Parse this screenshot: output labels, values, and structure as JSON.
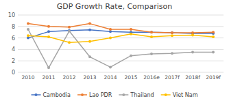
{
  "chart_data": {
    "type": "line",
    "title": "GDP Growth Rate, Comparison",
    "categories": [
      "2010",
      "2011",
      "2012",
      "2013",
      "2014",
      "2015",
      "2016e",
      "2017f",
      "2018f",
      "2019f"
    ],
    "series": [
      {
        "name": "Cambodia",
        "color": "#4472C4",
        "marker": "circle",
        "values": [
          6.0,
          7.1,
          7.3,
          7.4,
          7.1,
          7.0,
          7.0,
          6.9,
          6.8,
          6.8
        ]
      },
      {
        "name": "Lao PDR",
        "color": "#ED7D31",
        "marker": "circle",
        "values": [
          8.5,
          8.0,
          7.9,
          8.5,
          7.5,
          7.5,
          7.0,
          6.9,
          6.9,
          7.0
        ]
      },
      {
        "name": "Thailand",
        "color": "#A5A5A5",
        "marker": "circle",
        "values": [
          7.5,
          0.8,
          7.2,
          2.7,
          0.9,
          2.9,
          3.2,
          3.3,
          3.5,
          3.5
        ]
      },
      {
        "name": "Viet Nam",
        "color": "#FFC000",
        "marker": "circle",
        "values": [
          6.4,
          6.2,
          5.2,
          5.4,
          6.0,
          6.7,
          6.2,
          6.4,
          6.5,
          6.2
        ]
      }
    ],
    "ylim": [
      0.0,
      10.0
    ],
    "yticks": [
      0.0,
      2.0,
      4.0,
      6.0,
      8.0,
      10.0
    ],
    "grid": true,
    "legend": "bottom"
  }
}
